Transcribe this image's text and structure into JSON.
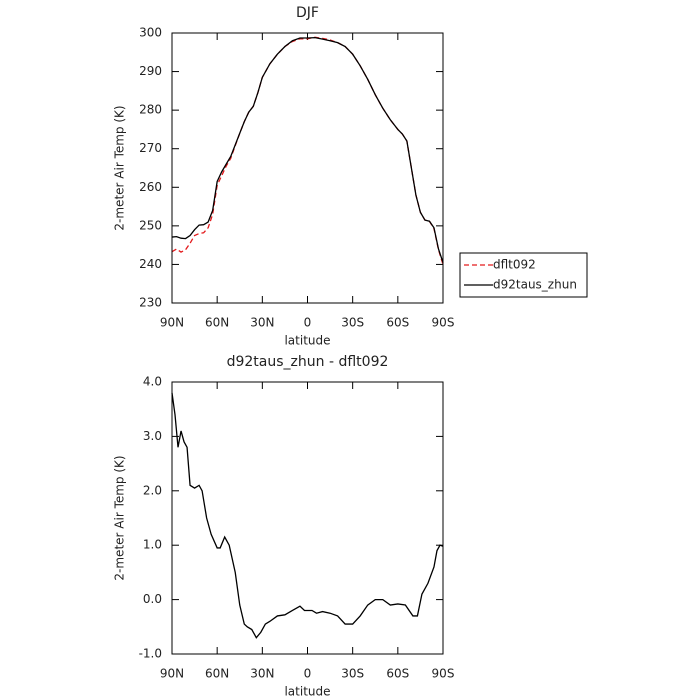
{
  "chart_data": [
    {
      "type": "line",
      "title": "DJF",
      "xlabel": "latitude",
      "ylabel": "2-meter Air Temp (K)",
      "x": [
        90,
        87,
        84,
        81,
        78,
        75,
        72,
        69,
        66,
        63,
        60,
        57,
        54,
        51,
        48,
        45,
        42,
        39,
        36,
        33,
        30,
        25,
        20,
        15,
        10,
        5,
        0,
        -5,
        -10,
        -15,
        -20,
        -25,
        -30,
        -35,
        -40,
        -45,
        -50,
        -55,
        -60,
        -63,
        -66,
        -69,
        -72,
        -75,
        -78,
        -81,
        -84,
        -87,
        -90
      ],
      "series": [
        {
          "name": "dflt092",
          "color": "#e31a1c",
          "dash": true,
          "values": [
            243.3,
            244,
            243.2,
            243.8,
            245.5,
            247.5,
            248,
            248.2,
            249.5,
            253,
            260.5,
            263,
            265.5,
            267.5,
            270.8,
            274,
            277,
            279.5,
            281,
            284.5,
            288.5,
            292,
            294.5,
            296.5,
            297.8,
            298.5,
            298.5,
            298.9,
            298.6,
            298.2,
            297.5,
            296.5,
            294.5,
            291.5,
            288,
            284,
            280.5,
            277.5,
            275,
            273.8,
            272,
            265,
            258,
            253.5,
            251.5,
            251.2,
            249.3,
            243.8,
            240
          ]
        },
        {
          "name": "d92taus_zhun",
          "color": "#000000",
          "dash": false,
          "values": [
            247.1,
            247.2,
            246.8,
            246.7,
            247.5,
            249,
            250.2,
            250.3,
            251,
            254,
            261.5,
            264,
            266,
            268,
            271,
            274,
            277,
            279.5,
            281,
            284.5,
            288.5,
            292,
            294.5,
            296.5,
            298,
            298.7,
            298.7,
            298.8,
            298.4,
            298,
            297.5,
            296.5,
            294.5,
            291.5,
            288,
            284,
            280.5,
            277.5,
            275,
            273.8,
            272,
            265,
            258,
            253.5,
            251.5,
            251.2,
            249.5,
            244,
            240.5
          ]
        }
      ],
      "xlim": [
        90,
        -90
      ],
      "xticks": [
        {
          "value": 90,
          "label": "90N"
        },
        {
          "value": 60,
          "label": "60N"
        },
        {
          "value": 30,
          "label": "30N"
        },
        0,
        {
          "value": -30,
          "label": "30S"
        },
        {
          "value": -60,
          "label": "60S"
        },
        {
          "value": -90,
          "label": "90S"
        }
      ],
      "ylim": [
        230,
        300
      ],
      "yticks": [
        230,
        240,
        250,
        260,
        270,
        280,
        290,
        300
      ],
      "legend": "right"
    },
    {
      "type": "line",
      "title": "d92taus_zhun - dflt092",
      "xlabel": "latitude",
      "ylabel": "2-meter Air Temp (K)",
      "x": [
        90,
        88,
        86,
        84,
        82,
        80,
        78,
        75,
        72,
        70,
        67,
        64,
        60,
        58,
        55,
        52,
        48,
        45,
        42,
        40,
        37,
        34,
        31,
        28,
        25,
        20,
        15,
        10,
        5,
        2,
        0,
        -3,
        -6,
        -10,
        -15,
        -20,
        -25,
        -30,
        -35,
        -40,
        -45,
        -50,
        -55,
        -60,
        -65,
        -70,
        -73,
        -76,
        -80,
        -84,
        -86,
        -88,
        -90
      ],
      "series": [
        {
          "name": "d92taus_zhun - dflt092",
          "color": "#000000",
          "dash": false,
          "values": [
            3.8,
            3.4,
            2.8,
            3.1,
            2.9,
            2.8,
            2.1,
            2.05,
            2.1,
            2.0,
            1.5,
            1.2,
            0.95,
            0.95,
            1.15,
            1.0,
            0.5,
            -0.1,
            -0.45,
            -0.5,
            -0.55,
            -0.7,
            -0.6,
            -0.45,
            -0.4,
            -0.3,
            -0.28,
            -0.2,
            -0.12,
            -0.2,
            -0.2,
            -0.2,
            -0.25,
            -0.22,
            -0.25,
            -0.3,
            -0.45,
            -0.45,
            -0.3,
            -0.1,
            0.0,
            0.0,
            -0.1,
            -0.08,
            -0.1,
            -0.3,
            -0.3,
            0.1,
            0.3,
            0.6,
            0.9,
            1.0,
            0.98
          ]
        }
      ],
      "xlim": [
        90,
        -90
      ],
      "xticks": [
        {
          "value": 90,
          "label": "90N"
        },
        {
          "value": 60,
          "label": "60N"
        },
        {
          "value": 30,
          "label": "30N"
        },
        0,
        {
          "value": -30,
          "label": "30S"
        },
        {
          "value": -60,
          "label": "60S"
        },
        {
          "value": -90,
          "label": "90S"
        }
      ],
      "ylim": [
        -1,
        4
      ],
      "yticks": [
        {
          "value": -1,
          "label": "-1.0"
        },
        {
          "value": 0,
          "label": "0.0"
        },
        {
          "value": 1,
          "label": "1.0"
        },
        {
          "value": 2,
          "label": "2.0"
        },
        {
          "value": 3,
          "label": "3.0"
        },
        {
          "value": 4,
          "label": "4.0"
        }
      ]
    }
  ]
}
